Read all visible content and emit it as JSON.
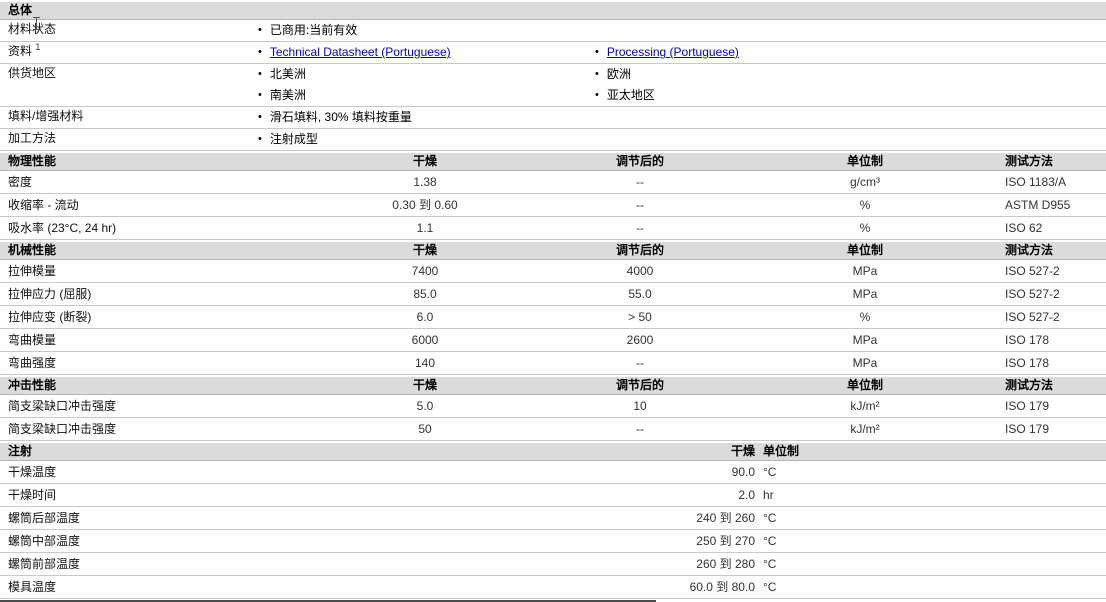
{
  "colors": {
    "section_header_bg": "#dbdbdb",
    "row_border": "#c9c9c9",
    "link": "#0000cc",
    "value_text": "#333333"
  },
  "general": {
    "title": "总体",
    "rows": [
      {
        "label": "材料状态",
        "sup": "",
        "col1": [
          {
            "text": "已商用:当前有效",
            "link": false
          }
        ],
        "col2": []
      },
      {
        "label": "资料",
        "sup": "1",
        "col1": [
          {
            "text": "Technical Datasheet (Portuguese)",
            "link": true
          }
        ],
        "col2": [
          {
            "text": "Processing (Portuguese)",
            "link": true
          }
        ]
      },
      {
        "label": "供货地区",
        "sup": "",
        "col1": [
          {
            "text": "北美洲",
            "link": false
          },
          {
            "text": "南美洲",
            "link": false
          }
        ],
        "col2": [
          {
            "text": "欧洲",
            "link": false
          },
          {
            "text": "亚太地区",
            "link": false
          }
        ]
      },
      {
        "label": "填料/增强材料",
        "sup": "",
        "col1": [
          {
            "text": "滑石填料, 30% 填料按重量",
            "link": false
          }
        ],
        "col2": []
      },
      {
        "label": "加工方法",
        "sup": "",
        "col1": [
          {
            "text": "注射成型",
            "link": false
          }
        ],
        "col2": []
      }
    ]
  },
  "property_sections": [
    {
      "title": "物理性能",
      "headers": {
        "dry": "干燥",
        "cond": "调节后的",
        "unit": "单位制",
        "method": "测试方法"
      },
      "rows": [
        {
          "label": "密度",
          "dry": "1.38",
          "cond": "--",
          "unit": "g/cm³",
          "method": "ISO 1183/A"
        },
        {
          "label": "收缩率 - 流动",
          "dry": "0.30 到 0.60",
          "cond": "--",
          "unit": "%",
          "method": "ASTM D955"
        },
        {
          "label": "吸水率 (23°C, 24 hr)",
          "dry": "1.1",
          "cond": "--",
          "unit": "%",
          "method": "ISO 62"
        }
      ]
    },
    {
      "title": "机械性能",
      "headers": {
        "dry": "干燥",
        "cond": "调节后的",
        "unit": "单位制",
        "method": "测试方法"
      },
      "rows": [
        {
          "label": "拉伸模量",
          "dry": "7400",
          "cond": "4000",
          "unit": "MPa",
          "method": "ISO 527-2"
        },
        {
          "label": "拉伸应力 (屈服)",
          "dry": "85.0",
          "cond": "55.0",
          "unit": "MPa",
          "method": "ISO 527-2"
        },
        {
          "label": "拉伸应变 (断裂)",
          "dry": "6.0",
          "cond": "> 50",
          "unit": "%",
          "method": "ISO 527-2"
        },
        {
          "label": "弯曲模量",
          "dry": "6000",
          "cond": "2600",
          "unit": "MPa",
          "method": "ISO 178"
        },
        {
          "label": "弯曲强度",
          "dry": "140",
          "cond": "--",
          "unit": "MPa",
          "method": "ISO 178"
        }
      ]
    },
    {
      "title": "冲击性能",
      "headers": {
        "dry": "干燥",
        "cond": "调节后的",
        "unit": "单位制",
        "method": "测试方法"
      },
      "rows": [
        {
          "label": "简支梁缺口冲击强度",
          "dry": "5.0",
          "cond": "10",
          "unit": "kJ/m²",
          "method": "ISO 179"
        },
        {
          "label": "简支梁缺口冲击强度",
          "dry": "50",
          "cond": "--",
          "unit": "kJ/m²",
          "method": "ISO 179"
        }
      ]
    }
  ],
  "injection": {
    "title": "注射",
    "headers": {
      "dry": "干燥",
      "unit": "单位制"
    },
    "rows": [
      {
        "label": "干燥温度",
        "value": "90.0",
        "unit": "°C"
      },
      {
        "label": "干燥时间",
        "value": "2.0",
        "unit": "hr"
      },
      {
        "label": "螺筒后部温度",
        "value": "240 到 260",
        "unit": "°C"
      },
      {
        "label": "螺筒中部温度",
        "value": "250 到 270",
        "unit": "°C"
      },
      {
        "label": "螺筒前部温度",
        "value": "260 到 280",
        "unit": "°C"
      },
      {
        "label": "模具温度",
        "value": "60.0 到 80.0",
        "unit": "°C"
      }
    ]
  }
}
